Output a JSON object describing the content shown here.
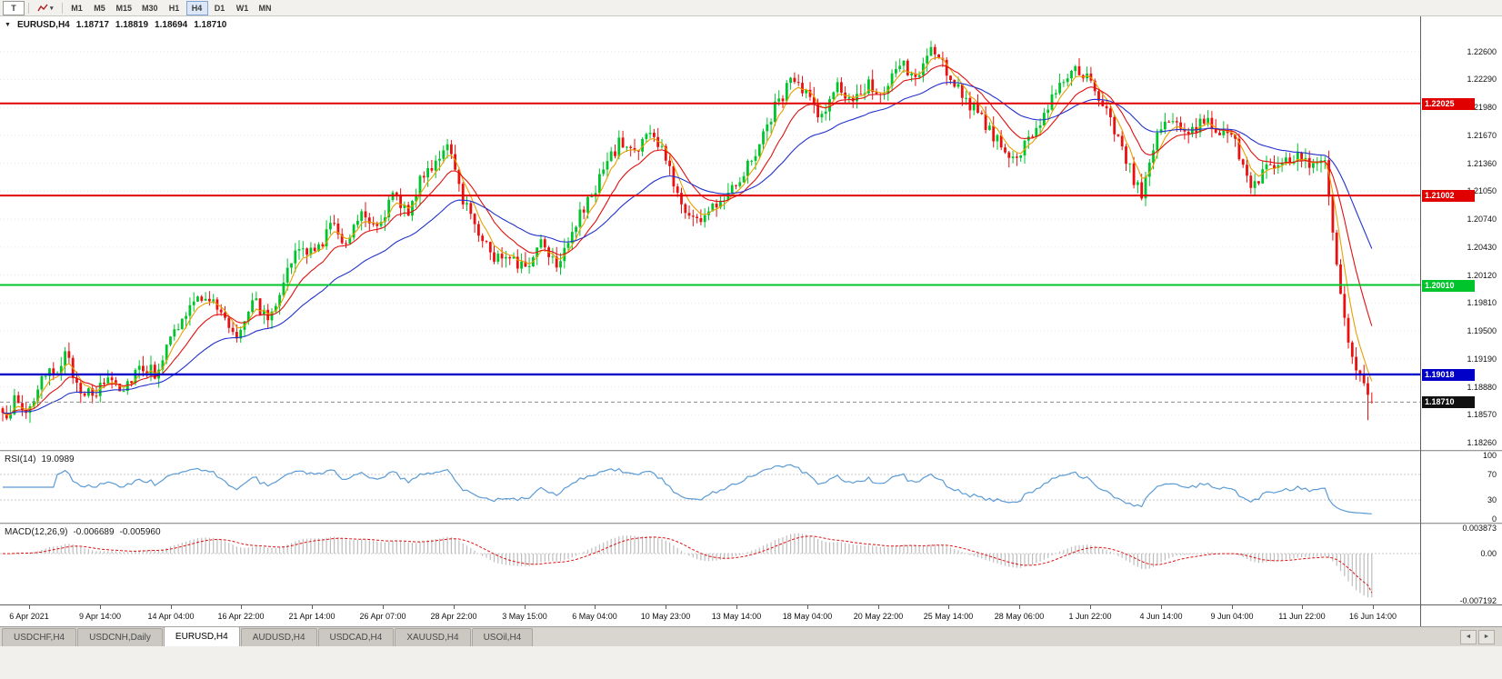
{
  "toolbar": {
    "tool_button": "T",
    "timeframes": [
      "M1",
      "M5",
      "M15",
      "M30",
      "H1",
      "H4",
      "D1",
      "W1",
      "MN"
    ],
    "active_timeframe": "H4",
    "dropdown_caret": "▾"
  },
  "header": {
    "dropdown_icon": "▼",
    "symbol": "EURUSD,H4",
    "open": "1.18717",
    "high": "1.18819",
    "low": "1.18694",
    "close": "1.18710"
  },
  "chart": {
    "price_axis": [
      "1.22600",
      "1.22290",
      "1.21980",
      "1.21670",
      "1.21360",
      "1.21050",
      "1.20740",
      "1.20430",
      "1.20120",
      "1.19810",
      "1.19500",
      "1.19190",
      "1.18880",
      "1.18570",
      "1.18260"
    ],
    "hlines": [
      {
        "label": "1.22025",
        "price": 1.22025,
        "color": "#E00000",
        "thickness": 2
      },
      {
        "label": "1.21002",
        "price": 1.21002,
        "color": "#E00000",
        "thickness": 2
      },
      {
        "label": "1.20010",
        "price": 1.2001,
        "color": "#00C42C",
        "thickness": 2
      },
      {
        "label": "1.19018",
        "price": 1.19018,
        "color": "#0000C8",
        "thickness": 2.4
      }
    ],
    "current_price": {
      "label": "1.18710",
      "value": 1.1871,
      "color": "#101010"
    },
    "time_axis": [
      "6 Apr 2021",
      "9 Apr 14:00",
      "14 Apr 04:00",
      "16 Apr 22:00",
      "21 Apr 14:00",
      "26 Apr 07:00",
      "28 Apr 22:00",
      "3 May 15:00",
      "6 May 04:00",
      "10 May 23:00",
      "13 May 14:00",
      "18 May 04:00",
      "20 May 22:00",
      "25 May 14:00",
      "28 May 06:00",
      "1 Jun 22:00",
      "4 Jun 14:00",
      "9 Jun 04:00",
      "11 Jun 22:00",
      "16 Jun 14:00"
    ]
  },
  "rsi": {
    "name": "RSI(14)",
    "value": "19.0989",
    "levels": [
      "100",
      "70",
      "30",
      "0"
    ]
  },
  "macd": {
    "name": "MACD(12,26,9)",
    "value_main": "-0.006689",
    "value_signal": "-0.005960",
    "levels": [
      "0.003873",
      "0.00",
      "-0.007192"
    ]
  },
  "tab_bar": {
    "tabs": [
      {
        "label": "USDCHF,H4",
        "active": false
      },
      {
        "label": "USDCNH,Daily",
        "active": false
      },
      {
        "label": "EURUSD,H4",
        "active": true
      },
      {
        "label": "AUDUSD,H4",
        "active": false
      },
      {
        "label": "USDCAD,H4",
        "active": false
      },
      {
        "label": "XAUUSD,H4",
        "active": false
      },
      {
        "label": "USOil,H4",
        "active": false
      }
    ],
    "scroll_left": "◄",
    "scroll_right": "►"
  },
  "chart_data": {
    "type": "candlestick",
    "symbol": "EURUSD",
    "timeframe": "H4",
    "n_candles": 352,
    "candle_spacing_px": 4.29,
    "price_top": 1.2299,
    "price_bottom": 1.1818,
    "last_candle": {
      "o": 1.18717,
      "h": 1.18819,
      "l": 1.18694,
      "c": 1.1871
    },
    "close_keypoints": [
      [
        0,
        1.1852
      ],
      [
        3,
        1.1872
      ],
      [
        6,
        1.186
      ],
      [
        10,
        1.1892
      ],
      [
        14,
        1.191
      ],
      [
        16,
        1.1922
      ],
      [
        19,
        1.1893
      ],
      [
        23,
        1.1874
      ],
      [
        27,
        1.19
      ],
      [
        31,
        1.1887
      ],
      [
        35,
        1.1913
      ],
      [
        39,
        1.1904
      ],
      [
        44,
        1.1948
      ],
      [
        48,
        1.1975
      ],
      [
        52,
        1.1992
      ],
      [
        56,
        1.1968
      ],
      [
        60,
        1.1945
      ],
      [
        64,
        1.1988
      ],
      [
        68,
        1.1962
      ],
      [
        72,
        1.2008
      ],
      [
        76,
        1.2042
      ],
      [
        80,
        1.2035
      ],
      [
        84,
        1.2068
      ],
      [
        88,
        1.205
      ],
      [
        92,
        1.2085
      ],
      [
        96,
        1.2068
      ],
      [
        100,
        1.2098
      ],
      [
        104,
        1.2085
      ],
      [
        108,
        1.2124
      ],
      [
        112,
        1.2146
      ],
      [
        114,
        1.2152
      ],
      [
        118,
        1.2098
      ],
      [
        122,
        1.2062
      ],
      [
        126,
        1.203
      ],
      [
        130,
        1.2038
      ],
      [
        134,
        1.2016
      ],
      [
        138,
        1.2052
      ],
      [
        142,
        1.2026
      ],
      [
        146,
        1.2062
      ],
      [
        150,
        1.2092
      ],
      [
        154,
        1.2128
      ],
      [
        158,
        1.2158
      ],
      [
        162,
        1.215
      ],
      [
        166,
        1.217
      ],
      [
        170,
        1.2142
      ],
      [
        174,
        1.209
      ],
      [
        178,
        1.2072
      ],
      [
        182,
        1.2086
      ],
      [
        186,
        1.2108
      ],
      [
        190,
        1.2126
      ],
      [
        194,
        1.2158
      ],
      [
        198,
        1.2198
      ],
      [
        202,
        1.2228
      ],
      [
        206,
        1.2212
      ],
      [
        210,
        1.2188
      ],
      [
        214,
        1.2222
      ],
      [
        218,
        1.2198
      ],
      [
        222,
        1.2228
      ],
      [
        226,
        1.2208
      ],
      [
        230,
        1.2248
      ],
      [
        234,
        1.2228
      ],
      [
        238,
        1.2262
      ],
      [
        242,
        1.2238
      ],
      [
        246,
        1.2214
      ],
      [
        250,
        1.2188
      ],
      [
        254,
        1.2168
      ],
      [
        258,
        1.2136
      ],
      [
        262,
        1.2154
      ],
      [
        266,
        1.2184
      ],
      [
        270,
        1.2218
      ],
      [
        274,
        1.2242
      ],
      [
        278,
        1.2228
      ],
      [
        282,
        1.2198
      ],
      [
        286,
        1.2168
      ],
      [
        290,
        1.2118
      ],
      [
        292,
        1.2104
      ],
      [
        296,
        1.2168
      ],
      [
        300,
        1.2186
      ],
      [
        304,
        1.2168
      ],
      [
        308,
        1.2184
      ],
      [
        312,
        1.2174
      ],
      [
        316,
        1.2158
      ],
      [
        320,
        1.2108
      ],
      [
        324,
        1.2128
      ],
      [
        328,
        1.214
      ],
      [
        332,
        1.2146
      ],
      [
        336,
        1.213
      ],
      [
        339,
        1.2136
      ],
      [
        341,
        1.206
      ],
      [
        343,
        1.199
      ],
      [
        345,
        1.1938
      ],
      [
        347,
        1.1908
      ],
      [
        349,
        1.1893
      ],
      [
        350,
        1.188
      ],
      [
        351,
        1.1871
      ]
    ],
    "moving_averages": [
      {
        "period": 5,
        "color": "#E8A000"
      },
      {
        "period": 13,
        "color": "#E01010"
      },
      {
        "period": 34,
        "color": "#2233CC"
      }
    ],
    "colors": {
      "up": "#00C42C",
      "down": "#EA1010",
      "grid": "#E6E6E6",
      "bid_line": "#8c8c8c"
    },
    "rsi": {
      "period": 14,
      "last": 19.0989,
      "color": "#5B9BD5",
      "range": [
        0,
        100
      ],
      "level_lines": [
        70,
        30
      ]
    },
    "macd": {
      "fast": 12,
      "slow": 26,
      "signal": 9,
      "last_main": -0.006689,
      "last_signal": -0.00596,
      "scale_max": 0.003873,
      "scale_min": -0.007192,
      "hist_color": "#BDBDBD",
      "signal_color": "#E01010"
    }
  }
}
